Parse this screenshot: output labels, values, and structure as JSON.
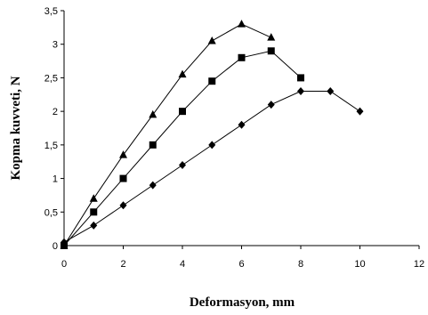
{
  "chart_data": {
    "type": "line",
    "title": "",
    "xlabel": "Deformasyon, mm",
    "ylabel": "Kopma kuvveti, N",
    "xlim": [
      0,
      12
    ],
    "ylim": [
      0,
      3.5
    ],
    "x_ticks": [
      0,
      2,
      4,
      6,
      8,
      10,
      12
    ],
    "y_ticks": [
      0,
      0.5,
      1,
      1.5,
      2,
      2.5,
      3,
      3.5
    ],
    "x_tick_labels": [
      "0",
      "2",
      "4",
      "6",
      "8",
      "10",
      "12"
    ],
    "y_tick_labels": [
      "0",
      "0,5",
      "1",
      "1,5",
      "2",
      "2,5",
      "3",
      "3,5"
    ],
    "grid": false,
    "legend": "none",
    "series": [
      {
        "marker": "triangle",
        "x": [
          0,
          1,
          2,
          3,
          4,
          5,
          6,
          7
        ],
        "y": [
          0,
          0.7,
          1.35,
          1.95,
          2.55,
          3.05,
          3.3,
          3.1
        ]
      },
      {
        "marker": "square",
        "x": [
          0,
          1,
          2,
          3,
          4,
          5,
          6,
          7,
          8
        ],
        "y": [
          0,
          0.5,
          1.0,
          1.5,
          2.0,
          2.45,
          2.8,
          2.9,
          2.5
        ]
      },
      {
        "marker": "diamond",
        "x": [
          0,
          1,
          2,
          3,
          4,
          5,
          6,
          7,
          8,
          9,
          10
        ],
        "y": [
          0.05,
          0.3,
          0.6,
          0.9,
          1.2,
          1.5,
          1.8,
          2.1,
          2.3,
          2.3,
          2.0
        ]
      }
    ]
  }
}
